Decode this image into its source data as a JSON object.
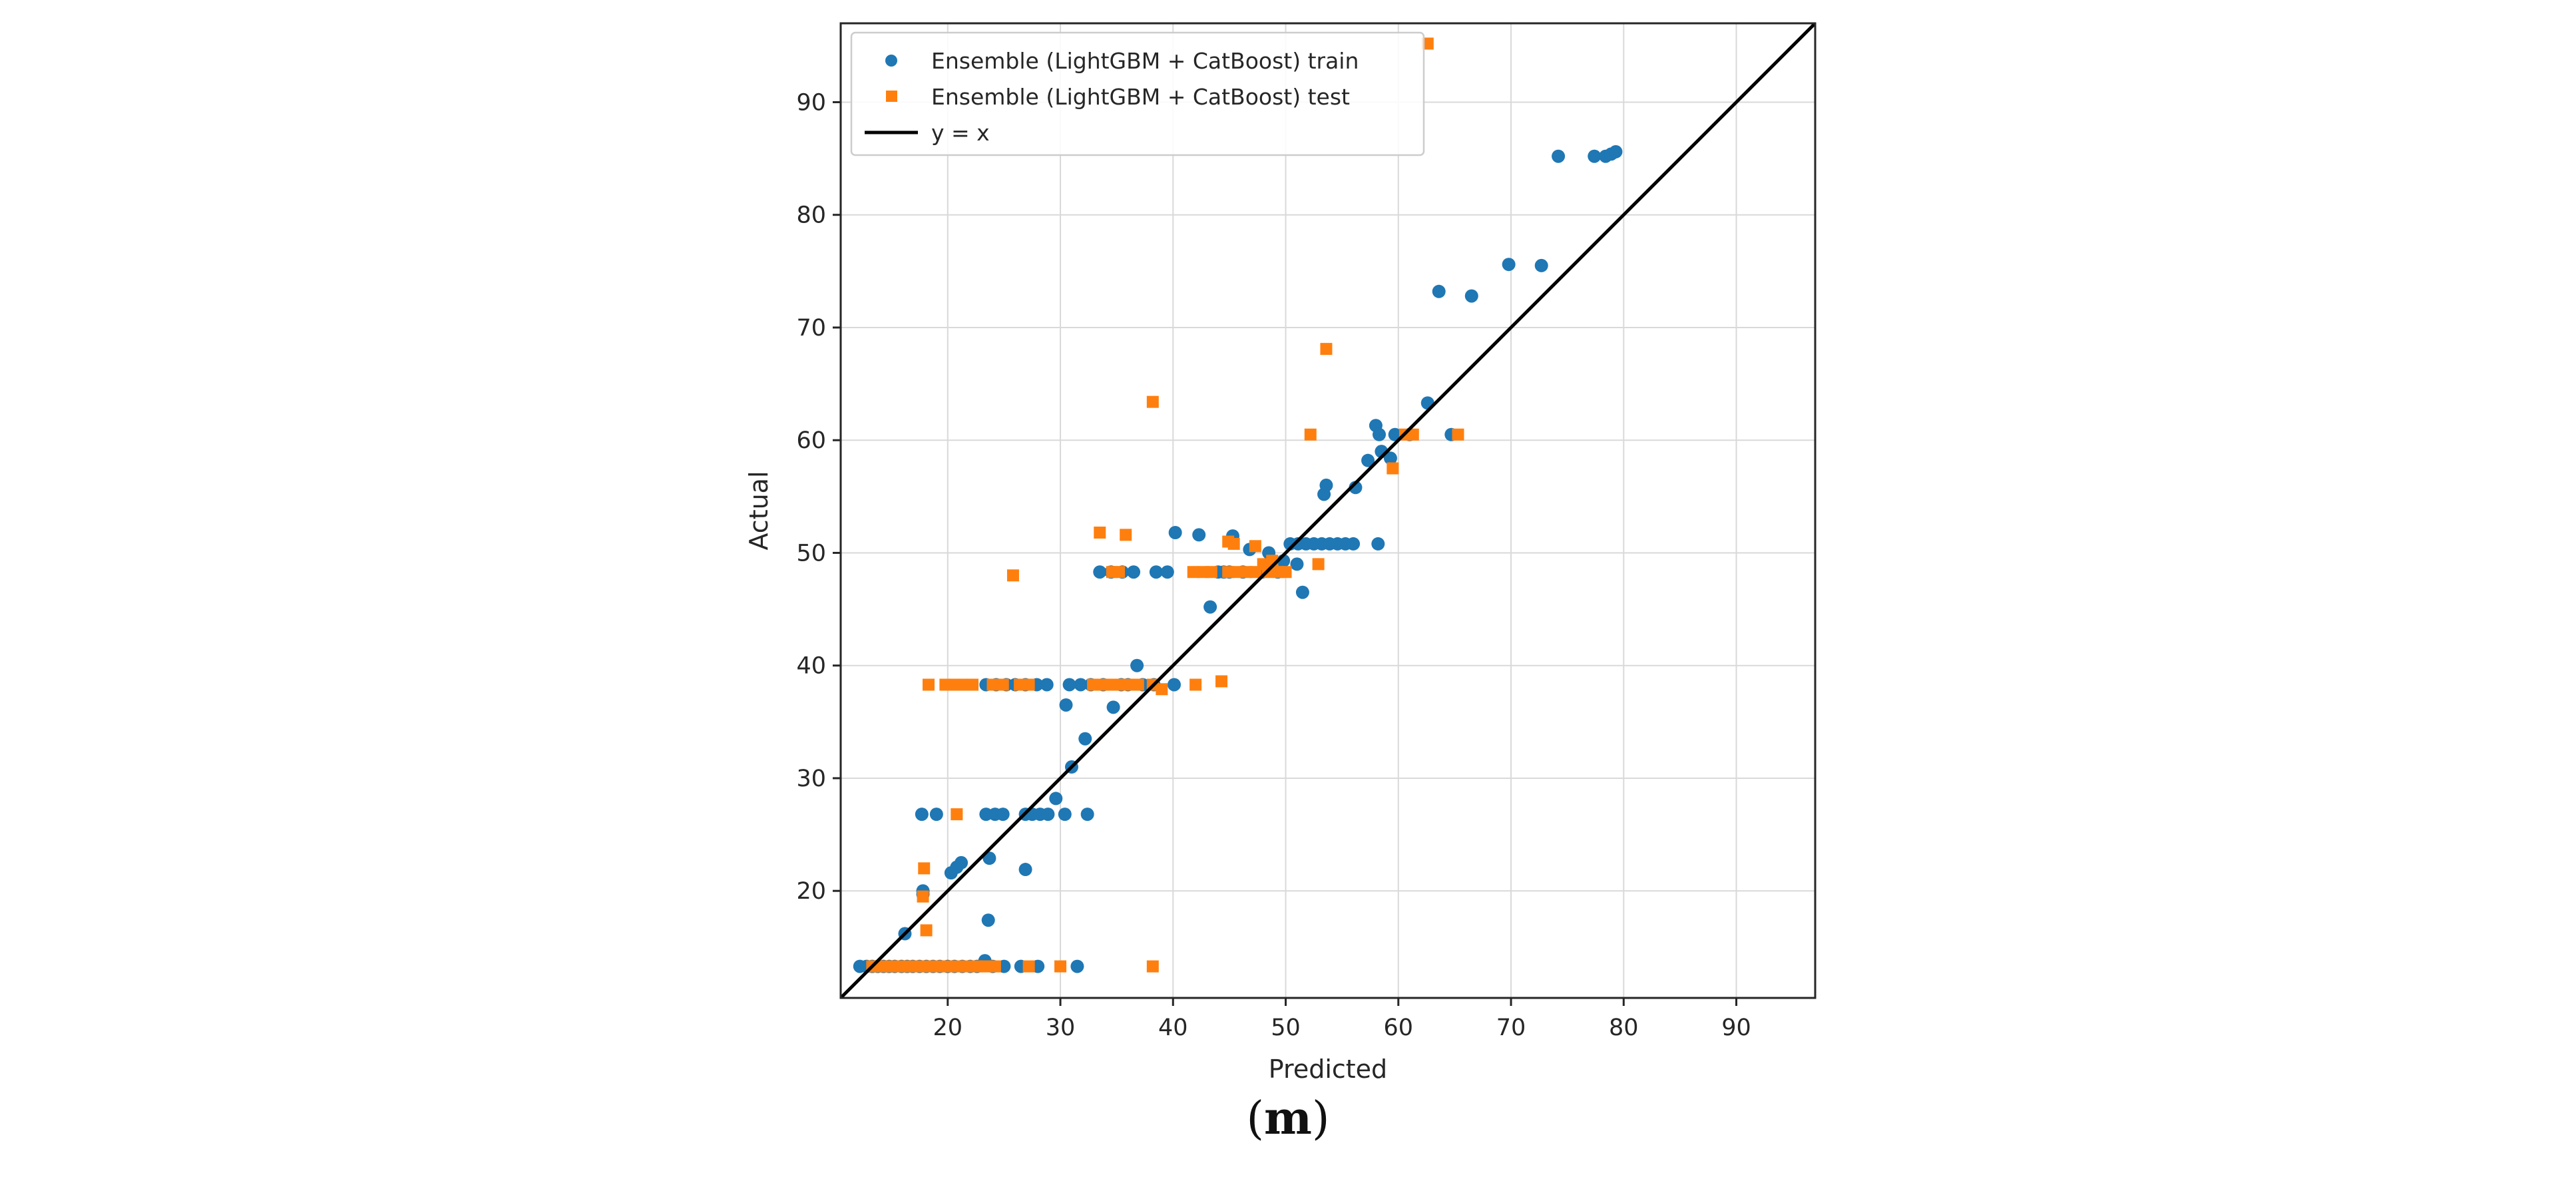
{
  "chart_data": {
    "type": "scatter",
    "xlabel": "Predicted",
    "ylabel": "Actual",
    "xlim": [
      10.5,
      97
    ],
    "ylim": [
      10.5,
      97
    ],
    "xticks": [
      20,
      30,
      40,
      50,
      60,
      70,
      80,
      90
    ],
    "yticks": [
      20,
      30,
      40,
      50,
      60,
      70,
      80,
      90
    ],
    "grid": true,
    "legend_position": "top-left",
    "series": [
      {
        "name": "Ensemble (LightGBM + CatBoost) train",
        "marker": "circle",
        "color": "#1f77b4",
        "points": [
          [
            12.2,
            13.3
          ],
          [
            12.8,
            13.3
          ],
          [
            13.3,
            13.3
          ],
          [
            13.8,
            13.3
          ],
          [
            14.3,
            13.3
          ],
          [
            14.8,
            13.3
          ],
          [
            15.3,
            13.3
          ],
          [
            15.9,
            13.3
          ],
          [
            16.4,
            13.3
          ],
          [
            16.9,
            13.3
          ],
          [
            17.5,
            13.3
          ],
          [
            18.1,
            13.3
          ],
          [
            18.7,
            13.3
          ],
          [
            19.3,
            13.3
          ],
          [
            20.0,
            13.3
          ],
          [
            20.6,
            13.3
          ],
          [
            21.3,
            13.3
          ],
          [
            22.0,
            13.3
          ],
          [
            22.6,
            13.3
          ],
          [
            23.3,
            13.8
          ],
          [
            24.0,
            13.3
          ],
          [
            25.0,
            13.3
          ],
          [
            26.5,
            13.3
          ],
          [
            28.0,
            13.3
          ],
          [
            31.5,
            13.3
          ],
          [
            16.2,
            16.2
          ],
          [
            17.8,
            19.7
          ],
          [
            17.8,
            20.0
          ],
          [
            17.7,
            26.8
          ],
          [
            19.0,
            26.8
          ],
          [
            20.3,
            21.6
          ],
          [
            20.8,
            22.1
          ],
          [
            21.2,
            22.5
          ],
          [
            23.4,
            26.8
          ],
          [
            24.2,
            26.8
          ],
          [
            24.9,
            26.8
          ],
          [
            23.7,
            22.9
          ],
          [
            23.6,
            17.4
          ],
          [
            26.9,
            21.9
          ],
          [
            26.9,
            26.8
          ],
          [
            27.5,
            26.8
          ],
          [
            28.2,
            26.8
          ],
          [
            28.9,
            26.8
          ],
          [
            29.6,
            28.2
          ],
          [
            30.4,
            26.8
          ],
          [
            31.0,
            31.0
          ],
          [
            32.2,
            33.5
          ],
          [
            32.4,
            26.8
          ],
          [
            23.4,
            38.3
          ],
          [
            24.3,
            38.3
          ],
          [
            25.2,
            38.3
          ],
          [
            26.0,
            38.3
          ],
          [
            26.9,
            38.3
          ],
          [
            27.9,
            38.3
          ],
          [
            28.8,
            38.3
          ],
          [
            30.5,
            36.5
          ],
          [
            30.8,
            38.3
          ],
          [
            31.8,
            38.3
          ],
          [
            32.7,
            38.3
          ],
          [
            33.8,
            38.3
          ],
          [
            34.7,
            36.3
          ],
          [
            35.4,
            38.3
          ],
          [
            36.0,
            38.3
          ],
          [
            36.8,
            40.0
          ],
          [
            37.3,
            38.3
          ],
          [
            38.3,
            38.3
          ],
          [
            40.1,
            38.3
          ],
          [
            33.5,
            48.3
          ],
          [
            34.5,
            48.3
          ],
          [
            35.5,
            48.3
          ],
          [
            36.5,
            48.3
          ],
          [
            38.5,
            48.3
          ],
          [
            39.5,
            48.3
          ],
          [
            40.2,
            51.8
          ],
          [
            42.3,
            51.6
          ],
          [
            44.5,
            48.3
          ],
          [
            45.3,
            51.5
          ],
          [
            45.0,
            48.3
          ],
          [
            46.2,
            48.3
          ],
          [
            43.3,
            45.2
          ],
          [
            44.0,
            48.3
          ],
          [
            46.8,
            50.3
          ],
          [
            47.9,
            48.3
          ],
          [
            48.5,
            50.0
          ],
          [
            49.3,
            48.3
          ],
          [
            49.8,
            49.3
          ],
          [
            50.4,
            50.8
          ],
          [
            51.1,
            50.8
          ],
          [
            51.5,
            46.5
          ],
          [
            51.0,
            49.0
          ],
          [
            51.8,
            50.8
          ],
          [
            52.5,
            50.8
          ],
          [
            53.2,
            50.8
          ],
          [
            53.9,
            50.8
          ],
          [
            54.6,
            50.8
          ],
          [
            55.3,
            50.8
          ],
          [
            56.0,
            50.8
          ],
          [
            58.2,
            50.8
          ],
          [
            53.4,
            55.2
          ],
          [
            53.6,
            56.0
          ],
          [
            56.2,
            55.8
          ],
          [
            57.3,
            58.2
          ],
          [
            58.0,
            61.3
          ],
          [
            58.3,
            60.5
          ],
          [
            58.5,
            59.0
          ],
          [
            59.3,
            58.4
          ],
          [
            59.7,
            60.5
          ],
          [
            61.0,
            60.5
          ],
          [
            62.6,
            63.3
          ],
          [
            64.7,
            60.5
          ],
          [
            63.6,
            73.2
          ],
          [
            66.5,
            72.8
          ],
          [
            69.8,
            75.6
          ],
          [
            72.7,
            75.5
          ],
          [
            74.2,
            85.2
          ],
          [
            77.4,
            85.2
          ],
          [
            78.4,
            85.2
          ],
          [
            78.9,
            85.4
          ],
          [
            79.3,
            85.6
          ]
        ]
      },
      {
        "name": "Ensemble (LightGBM + CatBoost) test",
        "marker": "square",
        "color": "#ff7f0e",
        "points": [
          [
            13.3,
            13.3
          ],
          [
            14.2,
            13.3
          ],
          [
            15.0,
            13.3
          ],
          [
            15.8,
            13.3
          ],
          [
            16.6,
            13.3
          ],
          [
            17.5,
            13.3
          ],
          [
            18.3,
            13.3
          ],
          [
            19.2,
            13.3
          ],
          [
            20.0,
            13.3
          ],
          [
            20.9,
            13.3
          ],
          [
            21.7,
            13.3
          ],
          [
            22.6,
            13.3
          ],
          [
            23.4,
            13.3
          ],
          [
            24.2,
            13.3
          ],
          [
            27.2,
            13.3
          ],
          [
            30.0,
            13.3
          ],
          [
            38.2,
            13.3
          ],
          [
            18.1,
            16.5
          ],
          [
            17.8,
            19.5
          ],
          [
            17.9,
            22.0
          ],
          [
            20.8,
            26.8
          ],
          [
            25.8,
            48.0
          ],
          [
            18.3,
            38.3
          ],
          [
            19.8,
            38.3
          ],
          [
            20.6,
            38.3
          ],
          [
            21.4,
            38.3
          ],
          [
            22.2,
            38.3
          ],
          [
            24.0,
            38.3
          ],
          [
            24.9,
            38.3
          ],
          [
            26.4,
            38.3
          ],
          [
            27.2,
            38.3
          ],
          [
            32.9,
            38.3
          ],
          [
            33.7,
            38.3
          ],
          [
            34.5,
            38.3
          ],
          [
            35.3,
            38.3
          ],
          [
            36.1,
            38.3
          ],
          [
            36.9,
            38.3
          ],
          [
            38.2,
            38.3
          ],
          [
            39.0,
            37.9
          ],
          [
            42.0,
            38.3
          ],
          [
            44.3,
            38.6
          ],
          [
            33.5,
            51.8
          ],
          [
            35.8,
            51.6
          ],
          [
            34.6,
            48.3
          ],
          [
            35.2,
            48.3
          ],
          [
            41.8,
            48.3
          ],
          [
            42.7,
            48.3
          ],
          [
            43.4,
            48.3
          ],
          [
            44.9,
            48.3
          ],
          [
            45.7,
            48.3
          ],
          [
            44.9,
            51.0
          ],
          [
            45.4,
            50.8
          ],
          [
            46.5,
            48.3
          ],
          [
            47.3,
            48.3
          ],
          [
            47.3,
            50.6
          ],
          [
            48.0,
            49.0
          ],
          [
            48.4,
            48.3
          ],
          [
            48.8,
            49.3
          ],
          [
            49.4,
            48.3
          ],
          [
            50.0,
            48.3
          ],
          [
            52.9,
            49.0
          ],
          [
            52.2,
            60.5
          ],
          [
            60.6,
            60.5
          ],
          [
            61.3,
            60.5
          ],
          [
            65.3,
            60.5
          ],
          [
            59.5,
            57.5
          ],
          [
            38.2,
            63.4
          ],
          [
            53.6,
            68.1
          ],
          [
            62.6,
            95.2
          ]
        ]
      }
    ],
    "reference_line": {
      "name": "y = x",
      "color": "#000000"
    }
  },
  "caption": {
    "open": "(",
    "letter": "m",
    "close": ")"
  }
}
